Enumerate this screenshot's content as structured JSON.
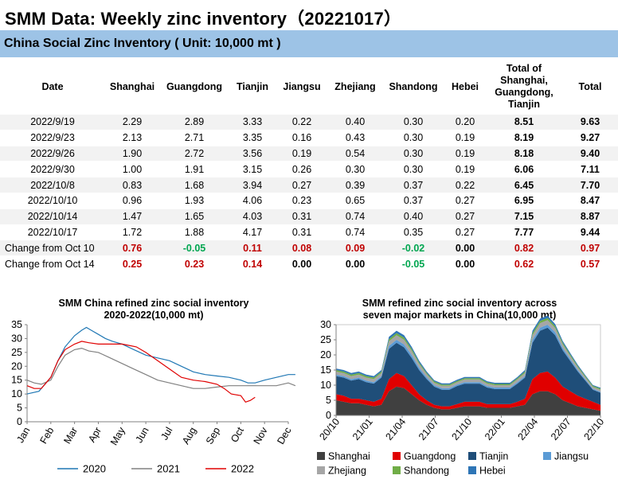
{
  "header": {
    "title": "SMM Data: Weekly zinc inventory（20221017）",
    "subtitle": "China Social Zinc Inventory ( Unit: 10,000 mt )"
  },
  "table": {
    "columns": [
      "Date",
      "Shanghai",
      "Guangdong",
      "Tianjin",
      "Jiangsu",
      "Zhejiang",
      "Shandong",
      "Hebei",
      "Total of Shanghai, Guangdong, Tianjin",
      "Total"
    ],
    "rows": [
      [
        "2022/9/19",
        "2.29",
        "2.89",
        "3.33",
        "0.22",
        "0.40",
        "0.30",
        "0.20",
        "8.51",
        "9.63"
      ],
      [
        "2022/9/23",
        "2.13",
        "2.71",
        "3.35",
        "0.16",
        "0.43",
        "0.30",
        "0.19",
        "8.19",
        "9.27"
      ],
      [
        "2022/9/26",
        "1.90",
        "2.72",
        "3.56",
        "0.19",
        "0.54",
        "0.30",
        "0.19",
        "8.18",
        "9.40"
      ],
      [
        "2022/9/30",
        "1.00",
        "1.91",
        "3.15",
        "0.26",
        "0.30",
        "0.30",
        "0.19",
        "6.06",
        "7.11"
      ],
      [
        "2022/10/8",
        "0.83",
        "1.68",
        "3.94",
        "0.27",
        "0.39",
        "0.37",
        "0.22",
        "6.45",
        "7.70"
      ],
      [
        "2022/10/10",
        "0.96",
        "1.93",
        "4.06",
        "0.23",
        "0.65",
        "0.37",
        "0.27",
        "6.95",
        "8.47"
      ],
      [
        "2022/10/14",
        "1.47",
        "1.65",
        "4.03",
        "0.31",
        "0.74",
        "0.40",
        "0.27",
        "7.15",
        "8.87"
      ],
      [
        "2022/10/17",
        "1.72",
        "1.88",
        "4.17",
        "0.31",
        "0.74",
        "0.35",
        "0.27",
        "7.77",
        "9.44"
      ]
    ],
    "changes": [
      {
        "label": "Change from Oct 10",
        "values": [
          "0.76",
          "-0.05",
          "0.11",
          "0.08",
          "0.09",
          "-0.02",
          "0.00",
          "0.82",
          "0.97"
        ],
        "colors": [
          "red",
          "green",
          "red",
          "red",
          "red",
          "green",
          "blk",
          "red",
          "red"
        ]
      },
      {
        "label": "Change from Oct 14",
        "values": [
          "0.25",
          "0.23",
          "0.14",
          "0.00",
          "0.00",
          "-0.05",
          "0.00",
          "0.62",
          "0.57"
        ],
        "colors": [
          "red",
          "red",
          "red",
          "blk",
          "blk",
          "green",
          "blk",
          "red",
          "red"
        ]
      }
    ]
  },
  "chart_data": [
    {
      "type": "line",
      "title": "SMM China  refined zinc social inventory\n2020-2022(10,000  mt)",
      "x_ticks": [
        "Jan",
        "Feb",
        "Mar",
        "Apr",
        "May",
        "Jun",
        "Jul",
        "Aug",
        "Sep",
        "Oct",
        "Nov",
        "Dec"
      ],
      "ylim": [
        0,
        35
      ],
      "y_ticks": [
        0,
        5,
        10,
        15,
        20,
        25,
        30,
        35
      ],
      "legend_position": "bottom",
      "series": [
        {
          "name": "2020",
          "color": "#1f77b4",
          "x": [
            0,
            0.5,
            1,
            1.3,
            1.6,
            2,
            2.3,
            2.5,
            2.7,
            3,
            3.3,
            3.6,
            4,
            4.5,
            5,
            5.5,
            6,
            6.5,
            7,
            7.5,
            8,
            8.5,
            9,
            9.3,
            9.6,
            10,
            10.5,
            11,
            11.3
          ],
          "y": [
            10,
            11,
            16,
            22,
            27,
            31,
            33,
            34,
            33,
            31.5,
            30,
            29,
            28,
            26,
            24,
            23,
            22,
            20,
            18,
            17,
            16.5,
            16,
            15,
            14,
            14,
            15,
            16,
            17,
            17
          ]
        },
        {
          "name": "2021",
          "color": "#808080",
          "x": [
            0,
            0.3,
            0.6,
            1,
            1.3,
            1.6,
            2,
            2.3,
            2.6,
            3,
            3.5,
            4,
            4.5,
            5,
            5.5,
            6,
            6.5,
            7,
            7.5,
            8,
            8.5,
            9,
            9.5,
            10,
            10.5,
            11,
            11.3
          ],
          "y": [
            15,
            14,
            13.5,
            15,
            20,
            24,
            26,
            26.5,
            25.5,
            25,
            23,
            21,
            19,
            17,
            15,
            14,
            13,
            12,
            12,
            12.5,
            13,
            13,
            13,
            13,
            13,
            14,
            13
          ]
        },
        {
          "name": "2022",
          "color": "#e00000",
          "x": [
            0,
            0.3,
            0.6,
            1,
            1.3,
            1.6,
            2,
            2.3,
            2.6,
            3,
            3.5,
            4,
            4.3,
            4.6,
            5,
            5.5,
            6,
            6.5,
            7,
            7.5,
            8,
            8.3,
            8.6,
            9,
            9.2,
            9.4,
            9.6
          ],
          "y": [
            13,
            12,
            12,
            16,
            22,
            26,
            28,
            29,
            28.5,
            28,
            28,
            28,
            27.5,
            27,
            25,
            22,
            19,
            16,
            15,
            14.5,
            13.5,
            12,
            10,
            9.4,
            7.1,
            7.7,
            8.8
          ]
        }
      ]
    },
    {
      "type": "area",
      "title": "SMM  refined zinc social inventory across\nseven major markets in China(10,000  mt)",
      "x_ticks": [
        "20/10",
        "21/01",
        "21/04",
        "21/07",
        "21/10",
        "22/01",
        "22/04",
        "22/07",
        "22/10"
      ],
      "ylim": [
        0,
        30
      ],
      "y_ticks": [
        0,
        5,
        10,
        15,
        20,
        25,
        30
      ],
      "legend_position": "bottom",
      "series": [
        {
          "name": "Shanghai",
          "color": "#404040",
          "values": [
            5,
            4.5,
            4,
            4,
            3.5,
            3,
            3.5,
            8,
            9.5,
            9,
            7,
            5,
            3.5,
            2.5,
            2,
            2,
            2.5,
            3,
            3,
            3,
            2.5,
            2.5,
            2.5,
            2.5,
            3,
            3.5,
            7,
            8,
            8,
            7,
            5,
            4,
            3,
            2.5,
            2,
            1.5
          ]
        },
        {
          "name": "Guangdong",
          "color": "#e00000",
          "values": [
            2,
            2,
            1.5,
            1.5,
            1.5,
            1.5,
            2,
            4,
            4.5,
            4,
            3,
            2,
            1.5,
            1,
            1,
            1,
            1.2,
            1.5,
            1.5,
            1.5,
            1.2,
            1.2,
            1.2,
            1.2,
            1.5,
            2,
            5,
            6,
            6.5,
            5.5,
            4.5,
            4,
            3.5,
            3,
            2.5,
            2
          ]
        },
        {
          "name": "Tianjin",
          "color": "#1f4e79",
          "values": [
            6,
            6,
            6,
            6.5,
            6,
            6,
            7,
            10,
            10,
            9.5,
            9,
            8,
            7,
            6,
            5.5,
            5.5,
            6,
            6,
            6,
            6,
            5.5,
            5,
            5,
            5,
            6,
            7,
            12,
            14,
            14.5,
            14,
            12,
            10,
            8,
            6,
            4,
            4
          ]
        },
        {
          "name": "Jiangsu",
          "color": "#5b9bd5",
          "values": [
            0.5,
            0.5,
            0.5,
            0.5,
            0.5,
            0.5,
            0.5,
            1,
            1,
            1,
            1,
            0.8,
            0.6,
            0.5,
            0.5,
            0.5,
            0.5,
            0.5,
            0.5,
            0.5,
            0.5,
            0.5,
            0.5,
            0.5,
            0.5,
            0.5,
            1,
            1,
            1,
            1,
            0.8,
            0.6,
            0.5,
            0.4,
            0.3,
            0.3
          ]
        },
        {
          "name": "Zhejiang",
          "color": "#a6a6a6",
          "values": [
            1,
            1,
            1,
            1,
            1,
            1,
            1,
            1.5,
            1.5,
            1.5,
            1.4,
            1.2,
            1,
            0.8,
            0.8,
            0.8,
            0.8,
            0.9,
            0.9,
            0.9,
            0.8,
            0.8,
            0.8,
            0.8,
            0.9,
            1,
            1.5,
            1.5,
            1.5,
            1.4,
            1.2,
            1,
            0.9,
            0.7,
            0.6,
            0.7
          ]
        },
        {
          "name": "Shandong",
          "color": "#70ad47",
          "values": [
            0.5,
            0.5,
            0.5,
            0.5,
            0.5,
            0.5,
            0.5,
            0.7,
            0.7,
            0.7,
            0.6,
            0.5,
            0.4,
            0.4,
            0.4,
            0.4,
            0.4,
            0.4,
            0.4,
            0.4,
            0.4,
            0.4,
            0.4,
            0.4,
            0.4,
            0.5,
            0.7,
            0.7,
            0.7,
            0.6,
            0.5,
            0.5,
            0.4,
            0.4,
            0.35,
            0.35
          ]
        },
        {
          "name": "Hebei",
          "color": "#2e75b6",
          "values": [
            0.5,
            0.5,
            0.5,
            0.5,
            0.5,
            0.5,
            0.5,
            0.8,
            0.8,
            0.8,
            0.7,
            0.6,
            0.5,
            0.4,
            0.4,
            0.4,
            0.4,
            0.4,
            0.4,
            0.4,
            0.4,
            0.4,
            0.4,
            0.4,
            0.4,
            0.5,
            0.8,
            0.8,
            0.8,
            0.7,
            0.6,
            0.5,
            0.4,
            0.3,
            0.27,
            0.27
          ]
        }
      ]
    }
  ]
}
